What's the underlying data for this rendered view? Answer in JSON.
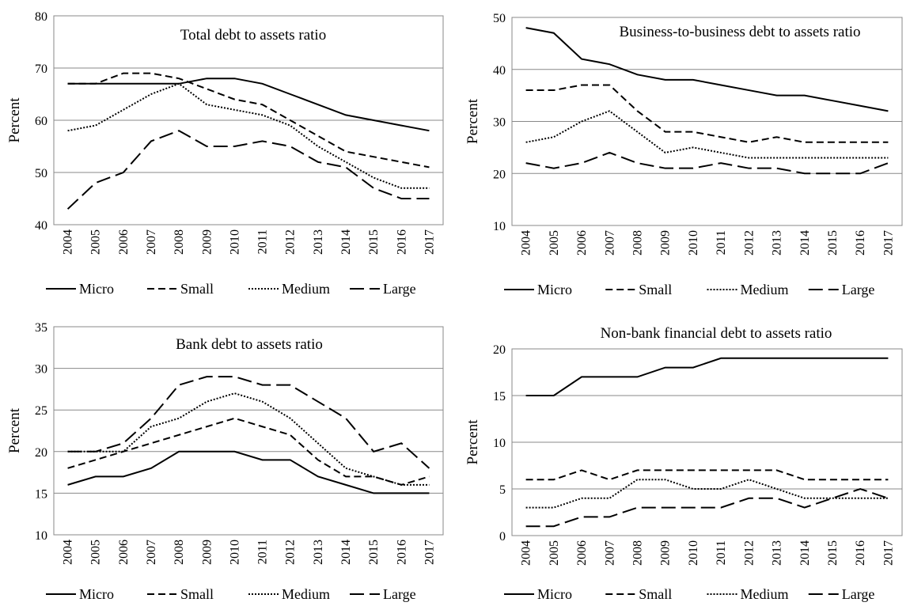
{
  "chart_data": [
    {
      "type": "line",
      "title": "Total debt to assets ratio",
      "ylabel": "Percent",
      "categories": [
        "2004",
        "2005",
        "2006",
        "2007",
        "2008",
        "2009",
        "2010",
        "2011",
        "2012",
        "2013",
        "2014",
        "2015",
        "2016",
        "2017"
      ],
      "ylim": [
        40,
        80
      ],
      "yticks": [
        40,
        50,
        60,
        70,
        80
      ],
      "grid": true,
      "series": [
        {
          "name": "Micro",
          "color": "#000000",
          "dash": "solid",
          "values": [
            67,
            67,
            67,
            67,
            67,
            68,
            68,
            67,
            65,
            63,
            61,
            60,
            59,
            58
          ]
        },
        {
          "name": "Small",
          "color": "#000000",
          "dash": "dashed",
          "values": [
            67,
            67,
            69,
            69,
            68,
            66,
            64,
            63,
            60,
            57,
            54,
            53,
            52,
            51
          ]
        },
        {
          "name": "Medium",
          "color": "#000000",
          "dash": "dotted",
          "values": [
            58,
            59,
            62,
            65,
            67,
            63,
            62,
            61,
            59,
            55,
            52,
            49,
            47,
            47
          ]
        },
        {
          "name": "Large",
          "color": "#000000",
          "dash": "long-dashed",
          "values": [
            43,
            48,
            50,
            56,
            58,
            55,
            55,
            56,
            55,
            52,
            51,
            47,
            45,
            45
          ]
        }
      ]
    },
    {
      "type": "line",
      "title": "Business-to-business debt to assets ratio",
      "ylabel": "Percent",
      "categories": [
        "2004",
        "2005",
        "2006",
        "2007",
        "2008",
        "2009",
        "2010",
        "2011",
        "2012",
        "2013",
        "2014",
        "2015",
        "2016",
        "2017"
      ],
      "ylim": [
        10,
        50
      ],
      "yticks": [
        10,
        20,
        30,
        40,
        50
      ],
      "grid": true,
      "series": [
        {
          "name": "Micro",
          "color": "#000000",
          "dash": "solid",
          "values": [
            48,
            47,
            42,
            41,
            39,
            38,
            38,
            37,
            36,
            35,
            35,
            34,
            33,
            32
          ]
        },
        {
          "name": "Small",
          "color": "#000000",
          "dash": "dashed",
          "values": [
            36,
            36,
            37,
            37,
            32,
            28,
            28,
            27,
            26,
            27,
            26,
            26,
            26,
            26
          ]
        },
        {
          "name": "Medium",
          "color": "#000000",
          "dash": "dotted",
          "values": [
            26,
            27,
            30,
            32,
            28,
            24,
            25,
            24,
            23,
            23,
            23,
            23,
            23,
            23
          ]
        },
        {
          "name": "Large",
          "color": "#000000",
          "dash": "long-dashed",
          "values": [
            22,
            21,
            22,
            24,
            22,
            21,
            21,
            22,
            21,
            21,
            20,
            20,
            20,
            22
          ]
        }
      ]
    },
    {
      "type": "line",
      "title": "Bank debt to assets ratio",
      "ylabel": "Percent",
      "categories": [
        "2004",
        "2005",
        "2006",
        "2007",
        "2008",
        "2009",
        "2010",
        "2011",
        "2012",
        "2013",
        "2014",
        "2015",
        "2016",
        "2017"
      ],
      "ylim": [
        10,
        35
      ],
      "yticks": [
        10,
        15,
        20,
        25,
        30,
        35
      ],
      "grid": true,
      "series": [
        {
          "name": "Micro",
          "color": "#000000",
          "dash": "solid",
          "values": [
            16,
            17,
            17,
            18,
            20,
            20,
            20,
            19,
            19,
            17,
            16,
            15,
            15,
            15
          ]
        },
        {
          "name": "Small",
          "color": "#000000",
          "dash": "dashed",
          "values": [
            18,
            19,
            20,
            21,
            22,
            23,
            24,
            23,
            22,
            19,
            17,
            17,
            16,
            17
          ]
        },
        {
          "name": "Medium",
          "color": "#000000",
          "dash": "dotted",
          "values": [
            20,
            20,
            20,
            23,
            24,
            26,
            27,
            26,
            24,
            21,
            18,
            17,
            16,
            16
          ]
        },
        {
          "name": "Large",
          "color": "#000000",
          "dash": "long-dashed",
          "values": [
            20,
            20,
            21,
            24,
            28,
            29,
            29,
            28,
            28,
            26,
            24,
            20,
            21,
            18
          ]
        }
      ]
    },
    {
      "type": "line",
      "title": "Non-bank financial debt to assets ratio",
      "ylabel": "Percent",
      "categories": [
        "2004",
        "2005",
        "2006",
        "2007",
        "2008",
        "2009",
        "2010",
        "2011",
        "2012",
        "2013",
        "2014",
        "2015",
        "2016",
        "2017"
      ],
      "ylim": [
        0,
        20
      ],
      "yticks": [
        0,
        5,
        10,
        15,
        20
      ],
      "grid": true,
      "series": [
        {
          "name": "Micro",
          "color": "#000000",
          "dash": "solid",
          "values": [
            15,
            15,
            17,
            17,
            17,
            18,
            18,
            19,
            19,
            19,
            19,
            19,
            19,
            19
          ]
        },
        {
          "name": "Small",
          "color": "#000000",
          "dash": "dashed",
          "values": [
            6,
            6,
            7,
            6,
            7,
            7,
            7,
            7,
            7,
            7,
            6,
            6,
            6,
            6
          ]
        },
        {
          "name": "Medium",
          "color": "#000000",
          "dash": "dotted",
          "values": [
            3,
            3,
            4,
            4,
            6,
            6,
            5,
            5,
            6,
            5,
            4,
            4,
            4,
            4
          ]
        },
        {
          "name": "Large",
          "color": "#000000",
          "dash": "long-dashed",
          "values": [
            1,
            1,
            2,
            2,
            3,
            3,
            3,
            3,
            4,
            4,
            3,
            4,
            5,
            4
          ]
        }
      ]
    }
  ]
}
